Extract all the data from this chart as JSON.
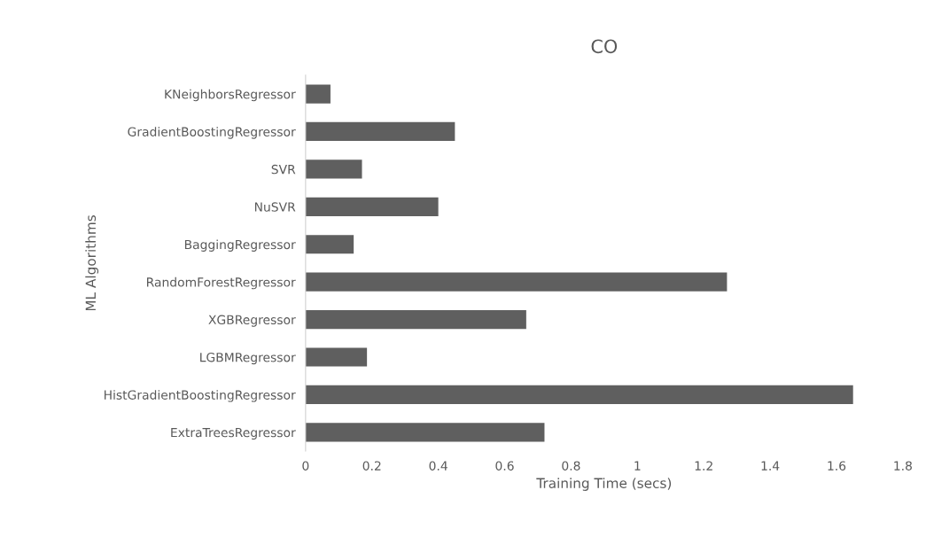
{
  "chart_data": {
    "type": "bar",
    "orientation": "horizontal",
    "title": "CO",
    "xlabel": "Training Time (secs)",
    "ylabel": "ML Algorithms",
    "categories": [
      "KNeighborsRegressor",
      "GradientBoostingRegressor",
      "SVR",
      "NuSVR",
      "BaggingRegressor",
      "RandomForestRegressor",
      "XGBRegressor",
      "LGBMRegressor",
      "HistGradientBoostingRegressor",
      "ExtraTreesRegressor"
    ],
    "values": [
      0.075,
      0.45,
      0.17,
      0.4,
      0.145,
      1.27,
      0.665,
      0.185,
      1.65,
      0.72
    ],
    "color": "#5f5f5f",
    "xlim": [
      0,
      1.8
    ],
    "xticks": [
      0,
      0.2,
      0.4,
      0.6,
      0.8,
      1,
      1.2,
      1.4,
      1.6,
      1.8
    ],
    "grid": false
  }
}
